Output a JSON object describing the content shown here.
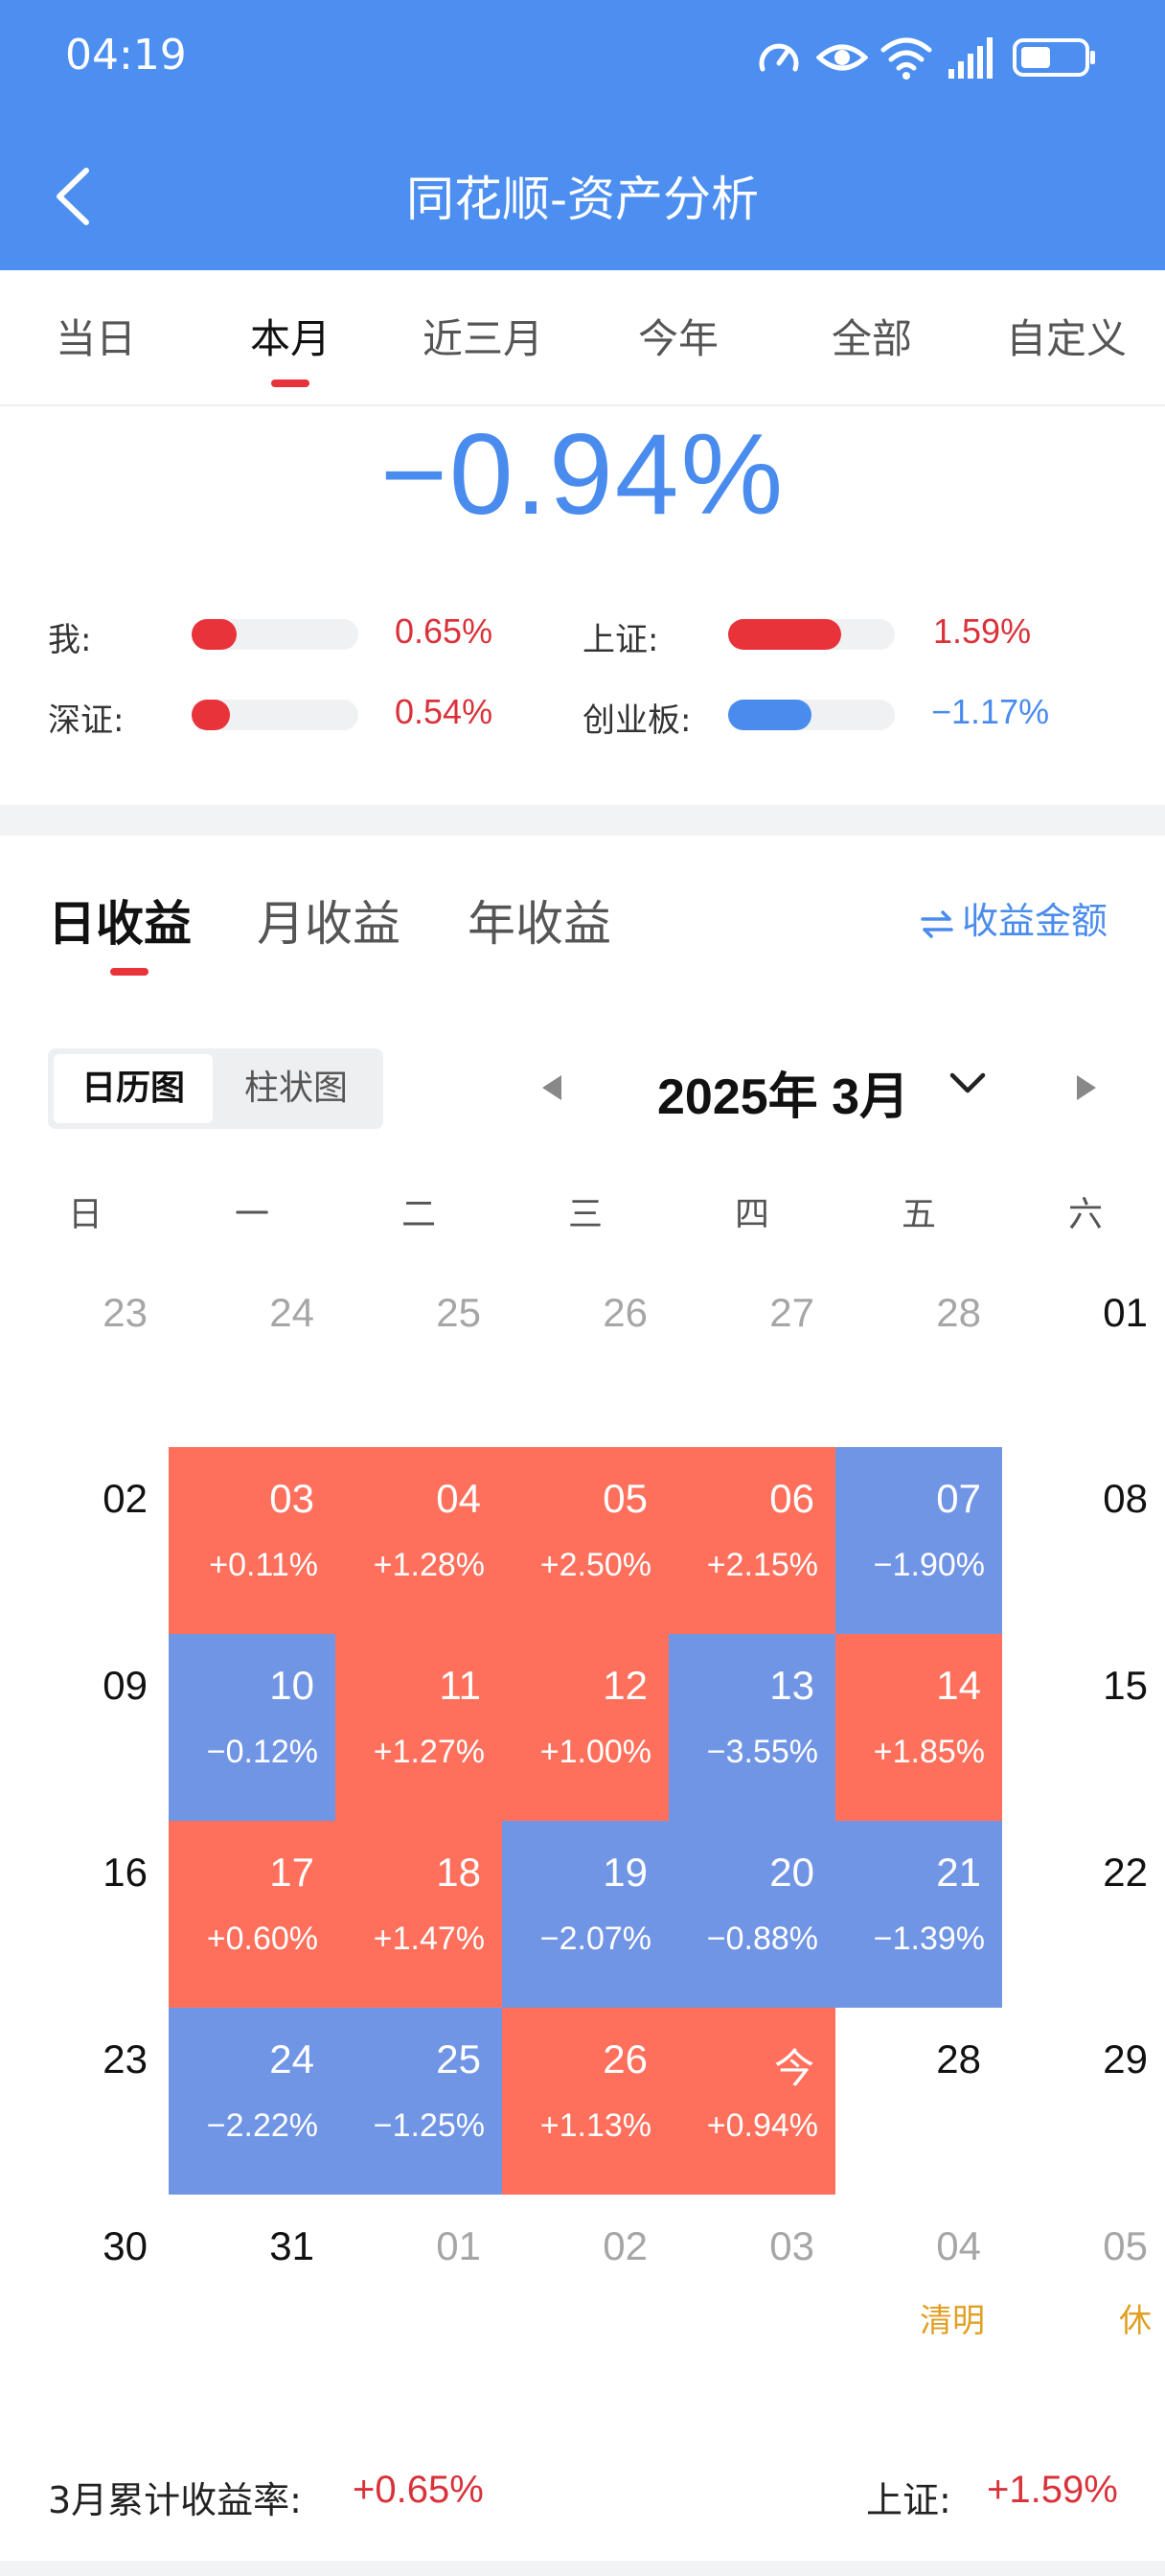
{
  "status_bar": {
    "time": "04:19",
    "icons": [
      "speed-icon",
      "eye-icon",
      "wifi-icon",
      "signal-icon",
      "battery-icon"
    ]
  },
  "header": {
    "title": "同花顺-资产分析",
    "back_icon": "chevron-left-icon"
  },
  "period_tabs": [
    {
      "label": "当日",
      "active": false
    },
    {
      "label": "本月",
      "active": true
    },
    {
      "label": "近三月",
      "active": false
    },
    {
      "label": "今年",
      "active": false
    },
    {
      "label": "全部",
      "active": false
    },
    {
      "label": "自定义",
      "active": false
    }
  ],
  "summary": {
    "total_return": "−0.94%",
    "comparisons": [
      {
        "label": "我:",
        "value": "0.65%",
        "bar_fraction": 0.27,
        "color": "#e8333a"
      },
      {
        "label": "上证:",
        "value": "1.59%",
        "bar_fraction": 0.68,
        "color": "#e8333a"
      },
      {
        "label": "深证:",
        "value": "0.54%",
        "bar_fraction": 0.23,
        "color": "#e8333a"
      },
      {
        "label": "创业板:",
        "value": "−1.17%",
        "bar_fraction": 0.5,
        "color": "#4a8cee"
      }
    ]
  },
  "profit_tabs": [
    {
      "label": "日收益",
      "active": true
    },
    {
      "label": "月收益",
      "active": false
    },
    {
      "label": "年收益",
      "active": false
    }
  ],
  "amount_toggle": {
    "icon": "swap-icon",
    "label": "收益金额"
  },
  "view_switch": [
    {
      "label": "日历图",
      "active": true
    },
    {
      "label": "柱状图",
      "active": false
    }
  ],
  "month": {
    "label": "2025年 3月",
    "prev_icon": "triangle-left-icon",
    "next_icon": "triangle-right-icon",
    "dropdown_icon": "chevron-down-icon"
  },
  "weekdays": [
    "日",
    "一",
    "二",
    "三",
    "四",
    "五",
    "六"
  ],
  "calendar": [
    [
      {
        "day": "23",
        "type": "muted"
      },
      {
        "day": "24",
        "type": "muted"
      },
      {
        "day": "25",
        "type": "muted"
      },
      {
        "day": "26",
        "type": "muted"
      },
      {
        "day": "27",
        "type": "muted"
      },
      {
        "day": "28",
        "type": "muted"
      },
      {
        "day": "01",
        "type": "plain"
      }
    ],
    [
      {
        "day": "02",
        "type": "plain"
      },
      {
        "day": "03",
        "type": "pos",
        "change": "+0.11%"
      },
      {
        "day": "04",
        "type": "pos",
        "change": "+1.28%"
      },
      {
        "day": "05",
        "type": "pos",
        "change": "+2.50%"
      },
      {
        "day": "06",
        "type": "pos",
        "change": "+2.15%"
      },
      {
        "day": "07",
        "type": "neg",
        "change": "−1.90%"
      },
      {
        "day": "08",
        "type": "plain"
      }
    ],
    [
      {
        "day": "09",
        "type": "plain"
      },
      {
        "day": "10",
        "type": "neg",
        "change": "−0.12%"
      },
      {
        "day": "11",
        "type": "pos",
        "change": "+1.27%"
      },
      {
        "day": "12",
        "type": "pos",
        "change": "+1.00%"
      },
      {
        "day": "13",
        "type": "neg",
        "change": "−3.55%"
      },
      {
        "day": "14",
        "type": "pos",
        "change": "+1.85%"
      },
      {
        "day": "15",
        "type": "plain"
      }
    ],
    [
      {
        "day": "16",
        "type": "plain"
      },
      {
        "day": "17",
        "type": "pos",
        "change": "+0.60%"
      },
      {
        "day": "18",
        "type": "pos",
        "change": "+1.47%"
      },
      {
        "day": "19",
        "type": "neg",
        "change": "−2.07%"
      },
      {
        "day": "20",
        "type": "neg",
        "change": "−0.88%"
      },
      {
        "day": "21",
        "type": "neg",
        "change": "−1.39%"
      },
      {
        "day": "22",
        "type": "plain"
      }
    ],
    [
      {
        "day": "23",
        "type": "plain"
      },
      {
        "day": "24",
        "type": "neg",
        "change": "−2.22%"
      },
      {
        "day": "25",
        "type": "neg",
        "change": "−1.25%"
      },
      {
        "day": "26",
        "type": "pos",
        "change": "+1.13%"
      },
      {
        "day": "今",
        "type": "pos",
        "change": "+0.94%"
      },
      {
        "day": "28",
        "type": "plain"
      },
      {
        "day": "29",
        "type": "plain"
      }
    ],
    [
      {
        "day": "30",
        "type": "plain"
      },
      {
        "day": "31",
        "type": "plain"
      },
      {
        "day": "01",
        "type": "muted"
      },
      {
        "day": "02",
        "type": "muted"
      },
      {
        "day": "03",
        "type": "muted"
      },
      {
        "day": "04",
        "type": "muted",
        "note": "清明"
      },
      {
        "day": "05",
        "type": "muted",
        "note": "休"
      }
    ]
  ],
  "footer": {
    "left_label": "3月累计收益率:",
    "left_value": "+0.65%",
    "right_label": "上证:",
    "right_value": "+1.59%"
  },
  "colors": {
    "header_bg": "#4d8ff0",
    "positive": "#fe705c",
    "negative": "#7195e5",
    "accent_red": "#e8333a",
    "accent_blue": "#4a8cee"
  }
}
